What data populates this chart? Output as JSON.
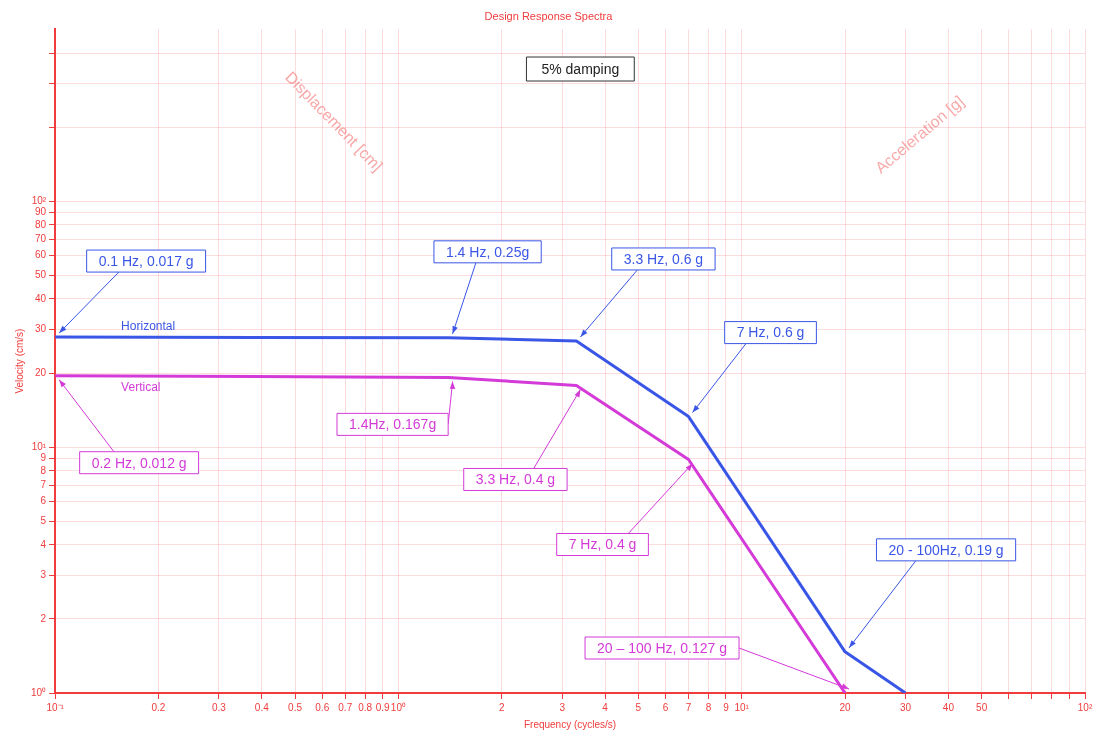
{
  "chart_data": {
    "type": "line",
    "title": "Design Response Spectra",
    "xlabel": "Frequency (cycles/s)",
    "ylabel": "Velocity (cm/s)",
    "log": "xy",
    "grid": true,
    "legend": false,
    "marker": "none",
    "line_style": "solid",
    "xlim": [
      0.1,
      100
    ],
    "ylim": [
      1,
      500
    ],
    "xticks": [
      {
        "value": 0.1,
        "label": "10⁻¹"
      },
      0.2,
      0.3,
      0.4,
      0.5,
      0.6,
      0.7,
      0.8,
      0.9,
      {
        "value": 1,
        "label": "10⁰"
      },
      2,
      3,
      4,
      5,
      6,
      7,
      8,
      9,
      {
        "value": 10,
        "label": "10¹"
      },
      20,
      30,
      40,
      50,
      {
        "value": 60,
        "label": null
      },
      {
        "value": 70,
        "label": null
      },
      {
        "value": 80,
        "label": null
      },
      {
        "value": 90,
        "label": null
      },
      {
        "value": 100,
        "label": "10²"
      }
    ],
    "yticks": [
      {
        "value": 1,
        "label": "10⁰"
      },
      2,
      3,
      4,
      5,
      6,
      7,
      8,
      9,
      {
        "value": 10,
        "label": "10¹"
      },
      20,
      30,
      40,
      50,
      60,
      70,
      80,
      90,
      {
        "value": 100,
        "label": "10²"
      },
      {
        "value": 200,
        "label": null
      },
      {
        "value": 300,
        "label": null
      },
      {
        "value": 400,
        "label": null
      }
    ],
    "series": [
      {
        "name": "Horizontal",
        "color": "#3a56e6",
        "x": [
          0.1,
          1.4,
          3.3,
          7,
          20,
          30
        ],
        "values": [
          28,
          27.8,
          27,
          13.3,
          1.47,
          1
        ]
      },
      {
        "name": "Vertical",
        "color": "#d43ad8",
        "x": [
          0.1,
          1.4,
          3.3,
          7,
          20
        ],
        "values": [
          19.5,
          19.2,
          17.8,
          8.9,
          1
        ]
      }
    ],
    "annotations": [
      {
        "text": "0.1 Hz, 0.017 g",
        "x": 0.1,
        "y": 28
      },
      {
        "text": "1.4 Hz, 0.25g",
        "x": 1.4,
        "y": 27.8
      },
      {
        "text": "3.3 Hz, 0.6 g",
        "x": 3.3,
        "y": 27
      },
      {
        "text": "7 Hz, 0.6 g",
        "x": 7,
        "y": 13.3
      },
      {
        "text": "20 - 100Hz, 0.19 g",
        "x": 20,
        "y": 1.47
      },
      {
        "text": "0.2 Hz, 0.012 g",
        "x": 0.1,
        "y": 19.5
      },
      {
        "text": "1.4Hz, 0.167g",
        "x": 1.4,
        "y": 19.2
      },
      {
        "text": "3.3 Hz, 0.4 g",
        "x": 3.3,
        "y": 17.8
      },
      {
        "text": "7 Hz, 0.4 g",
        "x": 7,
        "y": 8.9
      },
      {
        "text": "20 – 100 Hz, 0.127 g",
        "x": 20,
        "y": 1
      },
      "5% damping",
      "Displacement [cm]",
      "Acceleration [g]"
    ]
  }
}
